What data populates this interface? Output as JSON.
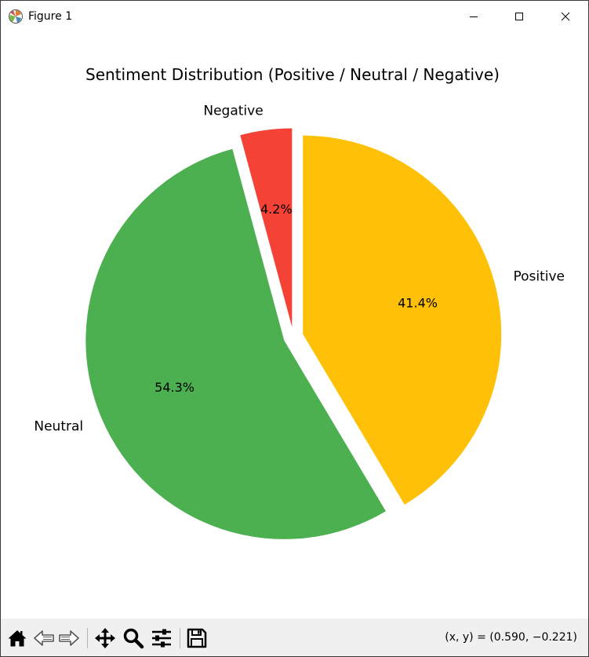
{
  "window": {
    "title": "Figure 1",
    "controls": [
      "minimize",
      "maximize",
      "close"
    ]
  },
  "toolbar": {
    "buttons": [
      {
        "name": "home",
        "icon": "home-icon"
      },
      {
        "name": "back",
        "icon": "back-arrow-icon"
      },
      {
        "name": "forward",
        "icon": "forward-arrow-icon"
      },
      {
        "name": "pan",
        "icon": "move-icon"
      },
      {
        "name": "zoom",
        "icon": "magnifier-icon"
      },
      {
        "name": "configure-subplots",
        "icon": "sliders-icon"
      },
      {
        "name": "save",
        "icon": "floppy-disk-icon"
      }
    ],
    "coordinates": "(x, y) = (0.590, −0.221)"
  },
  "chart_data": {
    "type": "pie",
    "title": "Sentiment Distribution (Positive / Neutral / Negative)",
    "labels": [
      "Positive",
      "Neutral",
      "Negative"
    ],
    "values": [
      41.4,
      54.3,
      4.2
    ],
    "autopct": [
      "41.4%",
      "54.3%",
      "4.2%"
    ],
    "colors": [
      "#ffc107",
      "#4caf50",
      "#f44336"
    ],
    "explode": [
      0.05,
      0.05,
      0.05
    ],
    "start_angle_deg": 90,
    "direction": "clockwise"
  }
}
